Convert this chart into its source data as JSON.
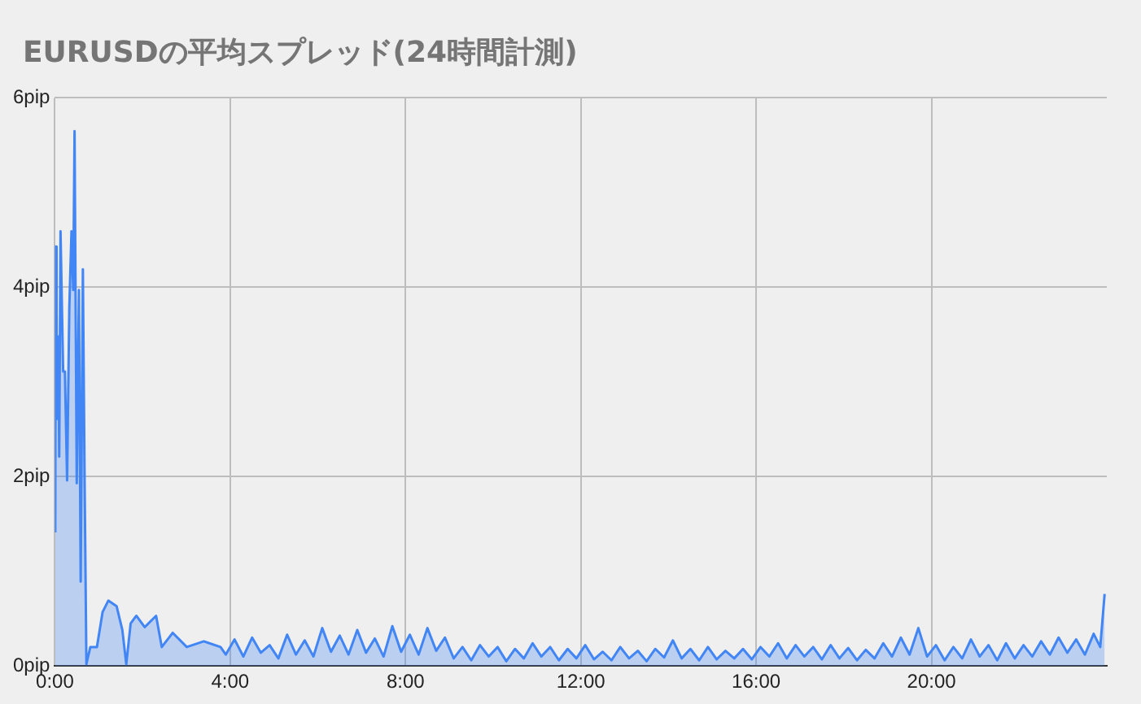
{
  "chart_data": {
    "type": "area",
    "title": "EURUSDの平均スプレッド(24時間計測)",
    "x": [
      0.01,
      0.02,
      0.04,
      0.05,
      0.08,
      0.1,
      0.13,
      0.19,
      0.23,
      0.28,
      0.33,
      0.38,
      0.42,
      0.45,
      0.5,
      0.55,
      0.59,
      0.64,
      0.68,
      0.72,
      0.81,
      0.96,
      1.09,
      1.22,
      1.41,
      1.54,
      1.63,
      1.73,
      1.86,
      2.05,
      2.31,
      2.44,
      2.69,
      3.01,
      3.4,
      3.78,
      3.9,
      4.1,
      4.3,
      4.5,
      4.7,
      4.9,
      5.1,
      5.3,
      5.5,
      5.7,
      5.9,
      6.1,
      6.3,
      6.5,
      6.7,
      6.9,
      7.1,
      7.3,
      7.5,
      7.7,
      7.9,
      8.1,
      8.3,
      8.5,
      8.7,
      8.9,
      9.1,
      9.3,
      9.5,
      9.7,
      9.9,
      10.1,
      10.3,
      10.5,
      10.7,
      10.9,
      11.1,
      11.3,
      11.5,
      11.7,
      11.9,
      12.1,
      12.3,
      12.5,
      12.7,
      12.9,
      13.1,
      13.3,
      13.5,
      13.7,
      13.9,
      14.1,
      14.3,
      14.5,
      14.7,
      14.9,
      15.1,
      15.3,
      15.5,
      15.7,
      15.9,
      16.1,
      16.3,
      16.5,
      16.7,
      16.9,
      17.1,
      17.3,
      17.5,
      17.7,
      17.9,
      18.1,
      18.3,
      18.5,
      18.7,
      18.9,
      19.1,
      19.3,
      19.5,
      19.7,
      19.9,
      20.1,
      20.3,
      20.5,
      20.7,
      20.9,
      21.1,
      21.3,
      21.5,
      21.7,
      21.9,
      22.1,
      22.3,
      22.5,
      22.7,
      22.9,
      23.1,
      23.3,
      23.5,
      23.7,
      23.85,
      23.95
    ],
    "series": [
      {
        "color": "#4285f4",
        "values": [
          1.41,
          4.43,
          3.72,
          2.61,
          3.48,
          2.21,
          4.59,
          3.11,
          3.11,
          1.96,
          3.78,
          4.59,
          3.97,
          5.65,
          1.93,
          3.97,
          0.89,
          4.19,
          1.93,
          0.02,
          0.2,
          0.2,
          0.57,
          0.69,
          0.63,
          0.38,
          0.02,
          0.45,
          0.53,
          0.41,
          0.53,
          0.2,
          0.35,
          0.2,
          0.26,
          0.2,
          0.12,
          0.28,
          0.1,
          0.3,
          0.14,
          0.22,
          0.08,
          0.33,
          0.12,
          0.27,
          0.1,
          0.4,
          0.15,
          0.32,
          0.12,
          0.38,
          0.14,
          0.29,
          0.1,
          0.42,
          0.15,
          0.33,
          0.12,
          0.4,
          0.16,
          0.3,
          0.08,
          0.2,
          0.06,
          0.22,
          0.1,
          0.2,
          0.05,
          0.18,
          0.08,
          0.24,
          0.1,
          0.2,
          0.06,
          0.18,
          0.08,
          0.22,
          0.07,
          0.15,
          0.06,
          0.2,
          0.08,
          0.16,
          0.05,
          0.18,
          0.09,
          0.27,
          0.08,
          0.18,
          0.06,
          0.2,
          0.07,
          0.16,
          0.08,
          0.18,
          0.07,
          0.2,
          0.1,
          0.24,
          0.08,
          0.22,
          0.1,
          0.2,
          0.07,
          0.22,
          0.08,
          0.19,
          0.06,
          0.17,
          0.08,
          0.24,
          0.1,
          0.3,
          0.12,
          0.4,
          0.1,
          0.22,
          0.06,
          0.2,
          0.08,
          0.28,
          0.1,
          0.22,
          0.06,
          0.24,
          0.08,
          0.22,
          0.1,
          0.26,
          0.12,
          0.3,
          0.14,
          0.28,
          0.12,
          0.34,
          0.2,
          0.76
        ]
      }
    ],
    "xlim": [
      0,
      24
    ],
    "xticks": [
      {
        "value": 0,
        "label": "0:00"
      },
      {
        "value": 4,
        "label": "4:00"
      },
      {
        "value": 8,
        "label": "8:00"
      },
      {
        "value": 12,
        "label": "12:00"
      },
      {
        "value": 16,
        "label": "16:00"
      },
      {
        "value": 20,
        "label": "20:00"
      }
    ],
    "ylim": [
      0,
      6
    ],
    "yticks": [
      {
        "value": 0,
        "label": "0pip"
      },
      {
        "value": 2,
        "label": "2pip"
      },
      {
        "value": 4,
        "label": "4pip"
      },
      {
        "value": 6,
        "label": "6pip"
      }
    ],
    "grid": true
  }
}
